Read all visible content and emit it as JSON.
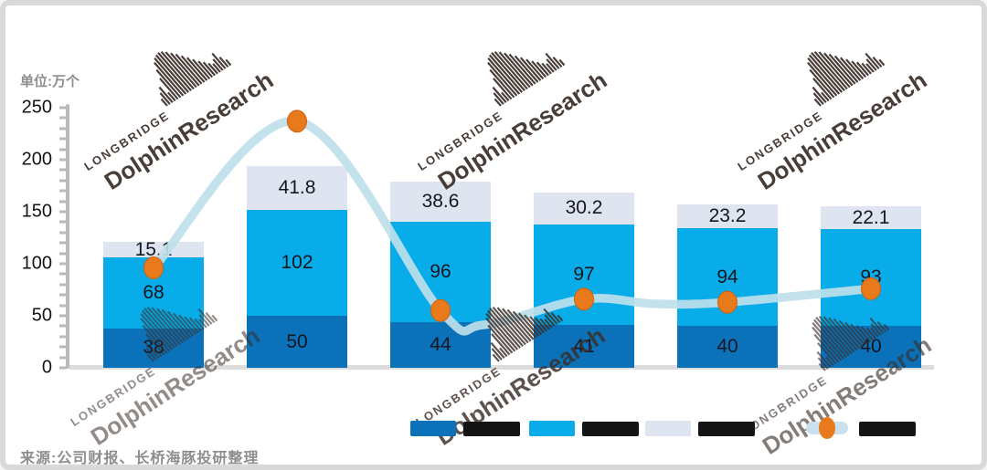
{
  "meta": {
    "unit_label": "单位:万个",
    "source_note": "来源:公司财报、长桥海豚投研整理"
  },
  "watermark": {
    "brand_small": "LONGBRIDGE",
    "brand_large": "DolphinResearch"
  },
  "chart_data": {
    "type": "bar",
    "stacked": true,
    "title": "",
    "unit_label": "单位:万个",
    "xlabel": "",
    "ylabel": "",
    "ylim": [
      0,
      250
    ],
    "yticks": [
      0,
      50,
      100,
      150,
      200,
      250
    ],
    "grid": false,
    "bar_count": 6,
    "x_labels_visible": false,
    "series": [
      {
        "name": "bottom-segment",
        "color": "#0b71b8",
        "values": [
          38,
          50,
          44,
          41,
          40,
          40
        ]
      },
      {
        "name": "middle-segment",
        "color": "#07ace9",
        "values": [
          68,
          102,
          96,
          97,
          94,
          93
        ]
      },
      {
        "name": "top-segment",
        "color": "#dee5f1",
        "values": [
          15.1,
          41.8,
          38.6,
          30.2,
          23.2,
          22.1
        ]
      }
    ],
    "line_series": {
      "name": "trend-line",
      "line_color": "#bedfe9",
      "marker_color": "#e87a1c",
      "values_est_left_axis": [
        96,
        237,
        55,
        66,
        63,
        76
      ],
      "note": "secondary-axis series, axis not shown; values estimated against left axis"
    },
    "legend_position": "bottom",
    "legend": {
      "labels_redacted": true,
      "items": [
        {
          "name": "legend-bottom-segment",
          "swatch": "#0b71b8"
        },
        {
          "name": "legend-middle-segment",
          "swatch": "#07ace9"
        },
        {
          "name": "legend-top-segment",
          "swatch": "#dee5f1"
        },
        {
          "name": "legend-trend-line",
          "swatch": "#c9e2ee",
          "marker": "#e87a1c"
        }
      ]
    }
  }
}
